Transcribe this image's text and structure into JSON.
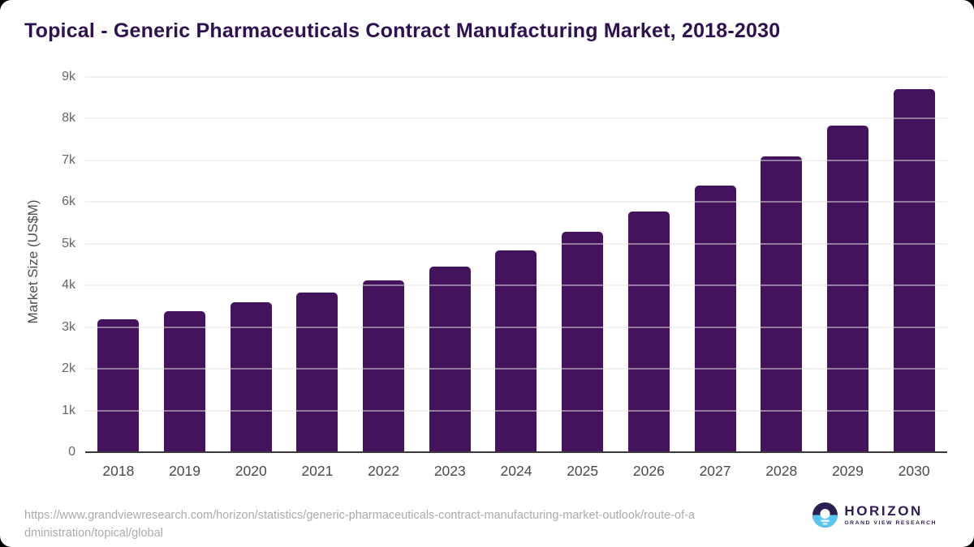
{
  "header": {
    "title": "Topical - Generic Pharmaceuticals Contract Manufacturing Market, 2018-2030"
  },
  "chart_data": {
    "type": "bar",
    "title": "Topical - Generic Pharmaceuticals Contract Manufacturing Market, 2018-2030",
    "categories": [
      "2018",
      "2019",
      "2020",
      "2021",
      "2022",
      "2023",
      "2024",
      "2025",
      "2026",
      "2027",
      "2028",
      "2029",
      "2030"
    ],
    "values": [
      3180,
      3390,
      3600,
      3830,
      4120,
      4450,
      4840,
      5280,
      5780,
      6390,
      7090,
      7830,
      8700
    ],
    "xlabel": "",
    "ylabel": "Market Size (US$M)",
    "ylim": [
      0,
      9000
    ],
    "grid": true,
    "legend_position": "none",
    "yticks": [
      {
        "value": 0,
        "label": "0"
      },
      {
        "value": 1000,
        "label": "1k"
      },
      {
        "value": 2000,
        "label": "2k"
      },
      {
        "value": 3000,
        "label": "3k"
      },
      {
        "value": 4000,
        "label": "4k"
      },
      {
        "value": 5000,
        "label": "5k"
      },
      {
        "value": 6000,
        "label": "6k"
      },
      {
        "value": 7000,
        "label": "7k"
      },
      {
        "value": 8000,
        "label": "8k"
      },
      {
        "value": 9000,
        "label": "9k"
      }
    ]
  },
  "footer": {
    "source_url_line1": "https://www.grandviewresearch.com/horizon/statistics/generic-pharmaceuticals-contract-manufacturing-market-outlook/route-of-a",
    "source_url_line2": "dministration/topical/global"
  },
  "logo": {
    "name": "HORIZON",
    "tagline": "GRAND VIEW RESEARCH"
  },
  "colors": {
    "bar_color": "#45135e",
    "title_color": "#2e1150",
    "grid_color": "#e4e4e4",
    "axis_color": "#3a3a3a",
    "logo_text_color": "#2f1b56",
    "logo_dark": "#2a1e52",
    "logo_blue": "#56c6f2"
  }
}
